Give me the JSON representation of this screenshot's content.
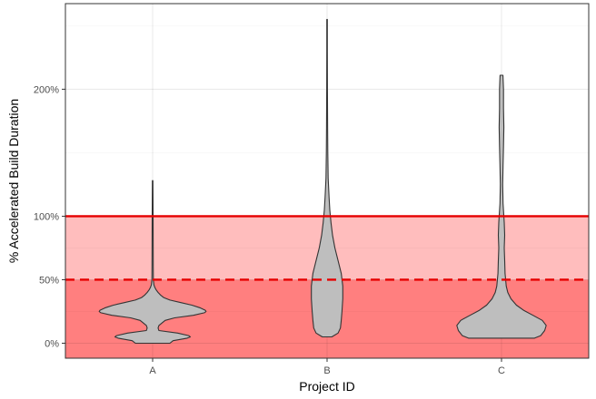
{
  "chart_data": {
    "type": "violin",
    "title": "",
    "xlabel": "Project ID",
    "ylabel": "% Accelerated Build Duration",
    "categories": [
      "A",
      "B",
      "C"
    ],
    "y_ticks": [
      {
        "value": 0,
        "label": "0%"
      },
      {
        "value": 50,
        "label": "50%"
      },
      {
        "value": 100,
        "label": "100%"
      },
      {
        "value": 200,
        "label": "200%"
      }
    ],
    "ylim": [
      -11.8,
      267.4
    ],
    "grid": true,
    "reference_lines": [
      {
        "value": 100,
        "style": "solid",
        "color": "#e60000"
      },
      {
        "value": 50,
        "style": "dashed",
        "color": "#e60000"
      }
    ],
    "bands": [
      {
        "from": -11.8,
        "to": 50,
        "color": "#ff7f7f"
      },
      {
        "from": 50,
        "to": 100,
        "color": "#ffbdbd"
      }
    ],
    "violins": [
      {
        "category": "A",
        "min": 0,
        "max": 128,
        "profile": [
          [
            0,
            0.22
          ],
          [
            2,
            0.26
          ],
          [
            4,
            0.44
          ],
          [
            5,
            0.48
          ],
          [
            6,
            0.46
          ],
          [
            8,
            0.32
          ],
          [
            10,
            0.08
          ],
          [
            12,
            0.07
          ],
          [
            14,
            0.08
          ],
          [
            16,
            0.12
          ],
          [
            18,
            0.16
          ],
          [
            20,
            0.28
          ],
          [
            22,
            0.52
          ],
          [
            24,
            0.66
          ],
          [
            25,
            0.68
          ],
          [
            26,
            0.67
          ],
          [
            28,
            0.6
          ],
          [
            30,
            0.5
          ],
          [
            32,
            0.36
          ],
          [
            34,
            0.22
          ],
          [
            36,
            0.14
          ],
          [
            38,
            0.1
          ],
          [
            40,
            0.07
          ],
          [
            42,
            0.045
          ],
          [
            44,
            0.028
          ],
          [
            46,
            0.016
          ],
          [
            50,
            0.009
          ],
          [
            60,
            0.008
          ],
          [
            80,
            0.007
          ],
          [
            100,
            0.006
          ],
          [
            115,
            0.005
          ],
          [
            128,
            0.004
          ]
        ]
      },
      {
        "category": "B",
        "min": 5,
        "max": 255,
        "profile": [
          [
            5,
            0.06
          ],
          [
            8,
            0.14
          ],
          [
            12,
            0.17
          ],
          [
            18,
            0.18
          ],
          [
            25,
            0.19
          ],
          [
            35,
            0.2
          ],
          [
            45,
            0.2
          ],
          [
            55,
            0.18
          ],
          [
            65,
            0.14
          ],
          [
            75,
            0.1
          ],
          [
            85,
            0.07
          ],
          [
            95,
            0.05
          ],
          [
            105,
            0.035
          ],
          [
            115,
            0.025
          ],
          [
            130,
            0.014
          ],
          [
            150,
            0.009
          ],
          [
            170,
            0.007
          ],
          [
            200,
            0.005
          ],
          [
            230,
            0.004
          ],
          [
            255,
            0.004
          ]
        ]
      },
      {
        "category": "C",
        "min": 4,
        "max": 211,
        "profile": [
          [
            4,
            0.42
          ],
          [
            6,
            0.5
          ],
          [
            10,
            0.55
          ],
          [
            14,
            0.57
          ],
          [
            18,
            0.52
          ],
          [
            22,
            0.4
          ],
          [
            26,
            0.28
          ],
          [
            30,
            0.19
          ],
          [
            35,
            0.12
          ],
          [
            40,
            0.08
          ],
          [
            45,
            0.06
          ],
          [
            55,
            0.045
          ],
          [
            65,
            0.04
          ],
          [
            75,
            0.035
          ],
          [
            85,
            0.04
          ],
          [
            95,
            0.035
          ],
          [
            110,
            0.02
          ],
          [
            125,
            0.015
          ],
          [
            140,
            0.02
          ],
          [
            155,
            0.025
          ],
          [
            170,
            0.03
          ],
          [
            185,
            0.025
          ],
          [
            200,
            0.025
          ],
          [
            211,
            0.018
          ]
        ]
      }
    ],
    "violin_fill": "#bebebe",
    "violin_stroke": "#333333"
  }
}
